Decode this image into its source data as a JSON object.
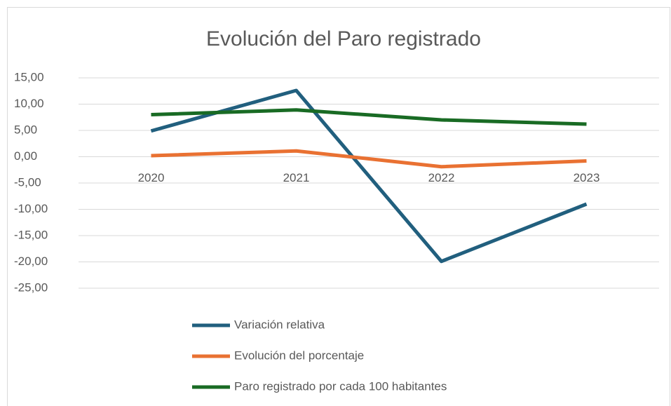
{
  "chart_data": {
    "type": "line",
    "title": "Evolución del Paro registrado",
    "categories": [
      "2020",
      "2021",
      "2022",
      "2023"
    ],
    "series": [
      {
        "name": "Variación relativa",
        "color": "#215f7e",
        "values": [
          4.9,
          12.6,
          -19.9,
          -9.0
        ]
      },
      {
        "name": "Evolución del porcentaje",
        "color": "#e97132",
        "values": [
          0.2,
          1.1,
          -1.9,
          -0.8
        ]
      },
      {
        "name": "Paro registrado por cada 100 habitantes",
        "color": "#196b24",
        "values": [
          8.0,
          8.9,
          7.0,
          6.2
        ]
      }
    ],
    "ylim": [
      -25,
      15
    ],
    "yticks": [
      {
        "value": 15,
        "label": "15,00"
      },
      {
        "value": 10,
        "label": "10,00"
      },
      {
        "value": 5,
        "label": "5,00"
      },
      {
        "value": 0,
        "label": "0,00"
      },
      {
        "value": -5,
        "label": "-5,00"
      },
      {
        "value": -10,
        "label": "-10,00"
      },
      {
        "value": -15,
        "label": "-15,00"
      },
      {
        "value": -20,
        "label": "-20,00"
      },
      {
        "value": -25,
        "label": "-25,00"
      }
    ],
    "grid": true,
    "legend": "bottom"
  }
}
